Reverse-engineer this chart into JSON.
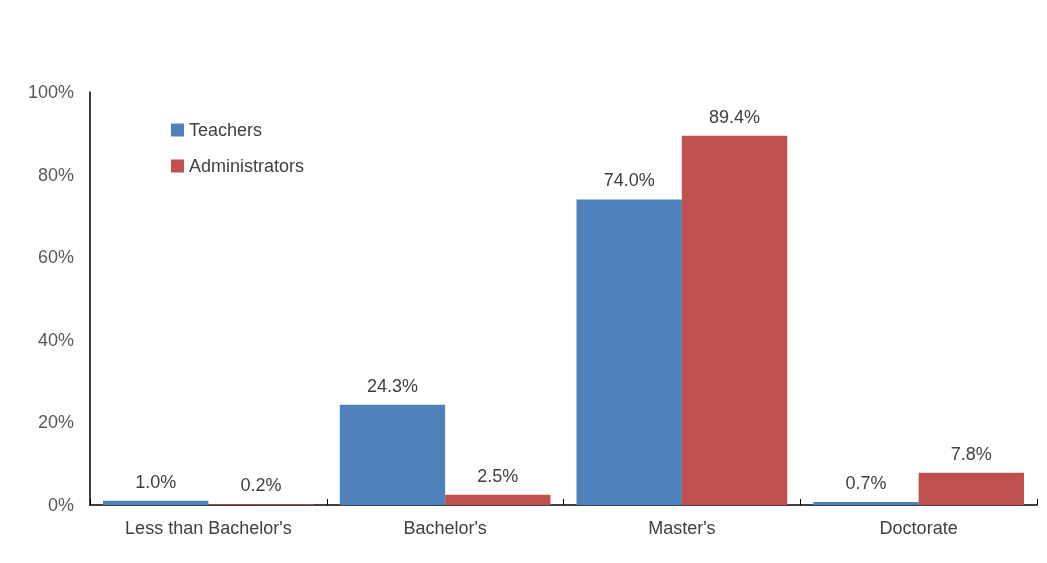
{
  "chart_data": {
    "type": "bar",
    "categories": [
      "Less than Bachelor's",
      "Bachelor's",
      "Master's",
      "Doctorate"
    ],
    "series": [
      {
        "name": "Teachers",
        "color": "#4f81bd",
        "values": [
          1.0,
          24.3,
          74.0,
          0.7
        ],
        "value_labels": [
          "1.0%",
          "24.3%",
          "74.0%",
          "0.7%"
        ]
      },
      {
        "name": "Administrators",
        "color": "#c0504d",
        "values": [
          0.2,
          2.5,
          89.4,
          7.8
        ],
        "value_labels": [
          "0.2%",
          "2.5%",
          "89.4%",
          "7.8%"
        ]
      }
    ],
    "ylim": [
      0,
      100
    ],
    "yticks": [
      {
        "value": 0,
        "label": "0%"
      },
      {
        "value": 20,
        "label": "20%"
      },
      {
        "value": 40,
        "label": "40%"
      },
      {
        "value": 60,
        "label": "60%"
      },
      {
        "value": 80,
        "label": "80%"
      },
      {
        "value": 100,
        "label": "100%"
      }
    ],
    "grid": false,
    "legend": "top left"
  }
}
